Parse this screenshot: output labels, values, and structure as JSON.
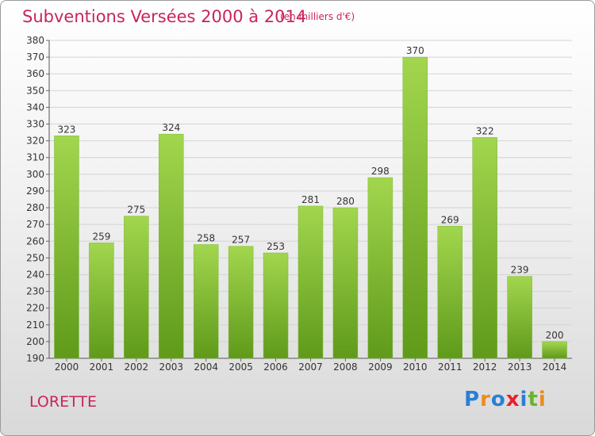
{
  "header": {
    "title": "Subventions Versées 2000 à 2014",
    "unit": "(en milliers d'€)"
  },
  "footer": {
    "commune": "LORETTE",
    "logo_letters": [
      {
        "char": "P",
        "color": "#2a7fd4"
      },
      {
        "char": "r",
        "color": "#f08a1c"
      },
      {
        "char": "o",
        "color": "#2a7fd4"
      },
      {
        "char": "x",
        "color": "#e8212e"
      },
      {
        "char": "i",
        "color": "#2a7fd4"
      },
      {
        "char": "t",
        "color": "#6ab42d"
      },
      {
        "char": "i",
        "color": "#f08a1c"
      }
    ]
  },
  "chart_data": {
    "type": "bar",
    "categories": [
      "2000",
      "2001",
      "2002",
      "2003",
      "2004",
      "2005",
      "2006",
      "2007",
      "2008",
      "2009",
      "2010",
      "2011",
      "2012",
      "2013",
      "2014"
    ],
    "values": [
      323,
      259,
      275,
      324,
      258,
      257,
      253,
      281,
      280,
      298,
      370,
      269,
      322,
      239,
      200
    ],
    "ylim": [
      190,
      380
    ],
    "ytick_step": 10,
    "grid": true,
    "bar_color_top": "#a2d64e",
    "bar_color_bottom": "#5f9a1a"
  }
}
